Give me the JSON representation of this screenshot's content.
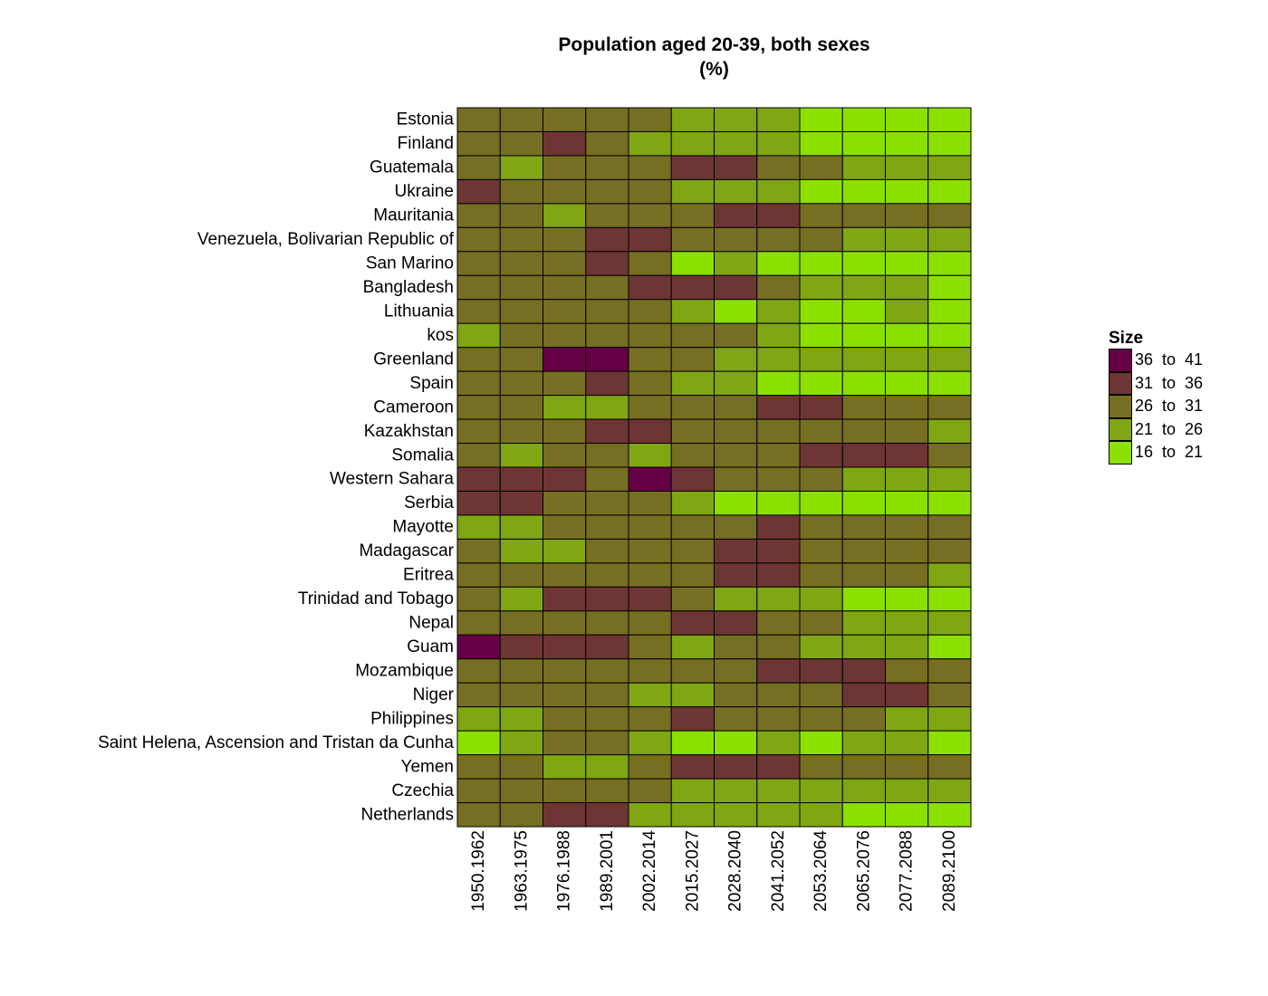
{
  "chart_data": {
    "type": "heatmap",
    "title": "Population aged 20-39, both sexes",
    "subtitle": "(%)",
    "xlabel": "",
    "ylabel": "",
    "x": [
      "1950.1962",
      "1963.1975",
      "1976.1988",
      "1989.2001",
      "2002.2014",
      "2015.2027",
      "2028.2040",
      "2041.2052",
      "2053.2064",
      "2065.2076",
      "2077.2088",
      "2089.2100"
    ],
    "y": [
      "Estonia",
      "Finland",
      "Guatemala",
      "Ukraine",
      "Mauritania",
      "Venezuela, Bolivarian Republic of",
      "San Marino",
      "Bangladesh",
      "Lithuania",
      "kos",
      "Greenland",
      "Spain",
      "Cameroon",
      "Kazakhstan",
      "Somalia",
      "Western Sahara",
      "Serbia",
      "Mayotte",
      "Madagascar",
      "Eritrea",
      "Trinidad and Tobago",
      "Nepal",
      "Guam",
      "Mozambique",
      "Niger",
      "Philippines",
      "Saint Helena, Ascension and Tristan da Cunha",
      "Yemen",
      "Czechia",
      "Netherlands"
    ],
    "values": [
      [
        3,
        3,
        3,
        3,
        3,
        4,
        4,
        4,
        5,
        5,
        5,
        5
      ],
      [
        3,
        3,
        2,
        3,
        4,
        4,
        4,
        4,
        5,
        5,
        5,
        5
      ],
      [
        3,
        4,
        3,
        3,
        3,
        2,
        2,
        3,
        3,
        4,
        4,
        4
      ],
      [
        2,
        3,
        3,
        3,
        3,
        4,
        4,
        4,
        5,
        5,
        5,
        5
      ],
      [
        3,
        3,
        4,
        3,
        3,
        3,
        2,
        2,
        3,
        3,
        3,
        3
      ],
      [
        3,
        3,
        3,
        2,
        2,
        3,
        3,
        3,
        3,
        4,
        4,
        4
      ],
      [
        3,
        3,
        3,
        2,
        3,
        5,
        4,
        5,
        5,
        5,
        5,
        5
      ],
      [
        3,
        3,
        3,
        3,
        2,
        2,
        2,
        3,
        4,
        4,
        4,
        5
      ],
      [
        3,
        3,
        3,
        3,
        3,
        4,
        5,
        4,
        5,
        5,
        4,
        5
      ],
      [
        4,
        3,
        3,
        3,
        3,
        3,
        3,
        4,
        5,
        5,
        5,
        5
      ],
      [
        3,
        3,
        1,
        1,
        3,
        3,
        4,
        4,
        4,
        4,
        4,
        4
      ],
      [
        3,
        3,
        3,
        2,
        3,
        4,
        4,
        5,
        5,
        5,
        5,
        5
      ],
      [
        3,
        3,
        4,
        4,
        3,
        3,
        3,
        2,
        2,
        3,
        3,
        3
      ],
      [
        3,
        3,
        3,
        2,
        2,
        3,
        3,
        3,
        3,
        3,
        3,
        4
      ],
      [
        3,
        4,
        3,
        3,
        4,
        3,
        3,
        3,
        2,
        2,
        2,
        3
      ],
      [
        2,
        2,
        2,
        3,
        1,
        2,
        3,
        3,
        3,
        4,
        4,
        4
      ],
      [
        2,
        2,
        3,
        3,
        3,
        4,
        5,
        5,
        5,
        5,
        5,
        5
      ],
      [
        4,
        4,
        3,
        3,
        3,
        3,
        3,
        2,
        3,
        3,
        3,
        3
      ],
      [
        3,
        4,
        4,
        3,
        3,
        3,
        2,
        2,
        3,
        3,
        3,
        3
      ],
      [
        3,
        3,
        3,
        3,
        3,
        3,
        2,
        2,
        3,
        3,
        3,
        4
      ],
      [
        3,
        4,
        2,
        2,
        2,
        3,
        4,
        4,
        4,
        5,
        5,
        5
      ],
      [
        3,
        3,
        3,
        3,
        3,
        2,
        2,
        3,
        3,
        4,
        4,
        4
      ],
      [
        1,
        2,
        2,
        2,
        3,
        4,
        3,
        3,
        4,
        4,
        4,
        5
      ],
      [
        3,
        3,
        3,
        3,
        3,
        3,
        3,
        2,
        2,
        2,
        3,
        3
      ],
      [
        3,
        3,
        3,
        3,
        4,
        4,
        3,
        3,
        3,
        2,
        2,
        3
      ],
      [
        4,
        4,
        3,
        3,
        3,
        2,
        3,
        3,
        3,
        3,
        4,
        4
      ],
      [
        5,
        4,
        3,
        3,
        4,
        5,
        5,
        4,
        5,
        4,
        4,
        5
      ],
      [
        3,
        3,
        4,
        4,
        3,
        2,
        2,
        2,
        3,
        3,
        3,
        3
      ],
      [
        3,
        3,
        3,
        3,
        3,
        4,
        4,
        4,
        4,
        4,
        4,
        4
      ],
      [
        3,
        3,
        2,
        2,
        4,
        4,
        4,
        4,
        4,
        5,
        5,
        5
      ]
    ],
    "value_encoding": "values are bin indices into legend.bins (1 = 36 to 41 ... 5 = 16 to 21)",
    "legend": {
      "title": "Size",
      "placement": "right",
      "bins": [
        {
          "label": "36  to  41",
          "color": "#660044"
        },
        {
          "label": "31  to  36",
          "color": "#6e3535"
        },
        {
          "label": "26  to  31",
          "color": "#766e22"
        },
        {
          "label": "21  to  26",
          "color": "#80a614"
        },
        {
          "label": "16  to  21",
          "color": "#8ce000"
        }
      ]
    },
    "grid": false
  }
}
